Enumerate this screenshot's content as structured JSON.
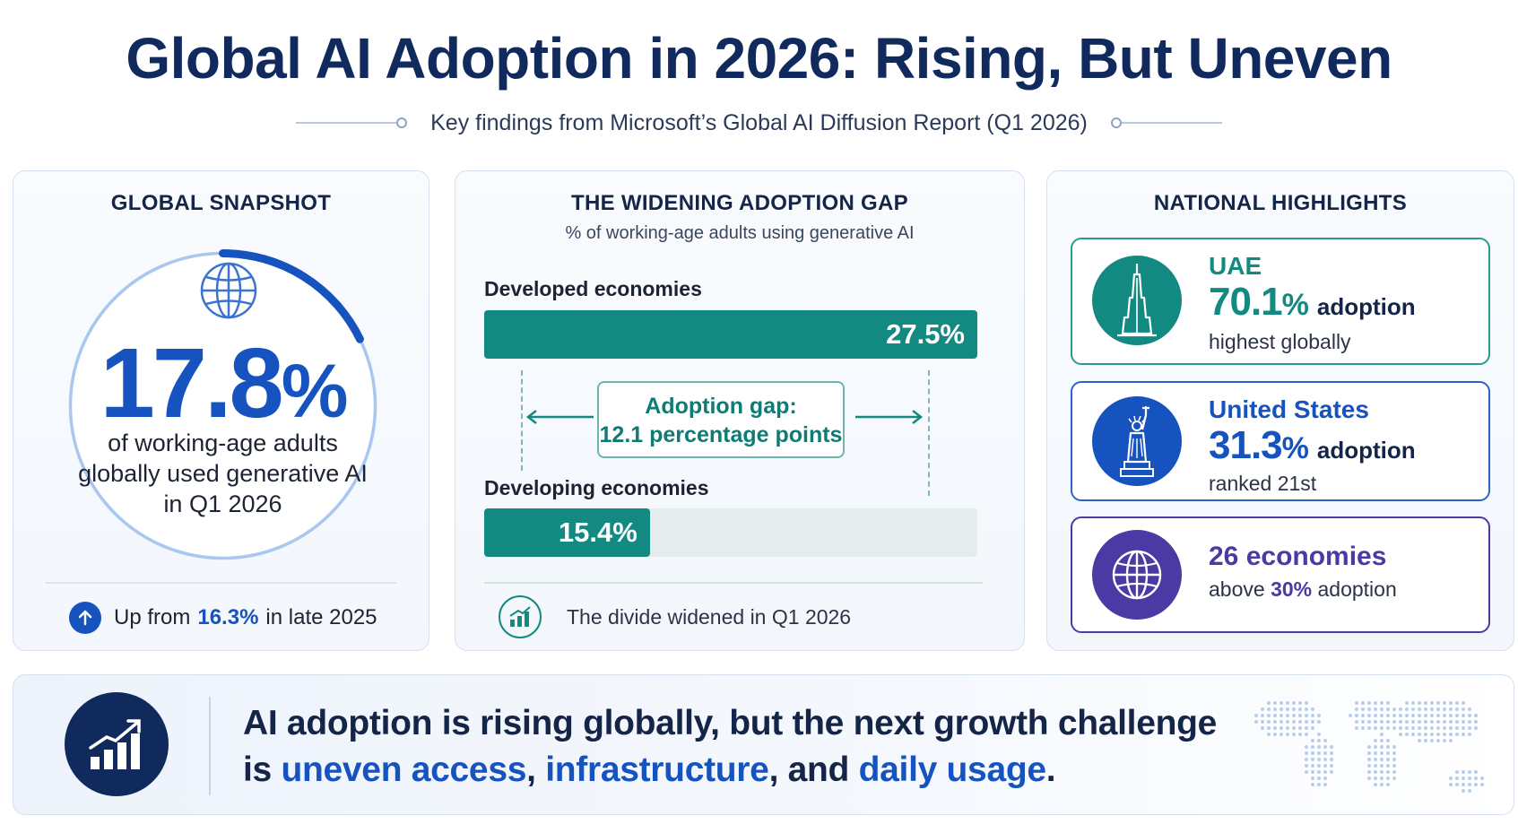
{
  "header": {
    "title": "Global AI Adoption in 2026: Rising, But Uneven",
    "subtitle": "Key findings from Microsoft’s Global AI Diffusion Report (Q1 2026)"
  },
  "snapshot": {
    "title": "GLOBAL SNAPSHOT",
    "value": "17.8",
    "unit": "%",
    "ring_fraction": 0.178,
    "description": "of working-age adults globally used generative AI in Q1 2026",
    "up_prefix": "Up from",
    "up_value": "16.3%",
    "up_suffix": "in late 2025",
    "icon": "globe-icon"
  },
  "gap": {
    "title": "THE WIDENING ADOPTION GAP",
    "subtitle": "% of working-age adults using generative AI",
    "developed": {
      "label": "Developed economies",
      "value_text": "27.5%",
      "value": 27.5
    },
    "developing": {
      "label": "Developing economies",
      "value_text": "15.4%",
      "value": 15.4
    },
    "gap_line1": "Adoption gap:",
    "gap_line2": "12.1 percentage points",
    "footer": "The divide widened in Q1 2026"
  },
  "national": {
    "title": "NATIONAL HIGHLIGHTS",
    "uae": {
      "name": "UAE",
      "value": "70.1",
      "unit": "%",
      "adoption": "adoption",
      "note": "highest globally",
      "icon": "burj-khalifa-icon"
    },
    "us": {
      "name": "United States",
      "value": "31.3",
      "unit": "%",
      "adoption": "adoption",
      "note": "ranked 21st",
      "icon": "statue-of-liberty-icon"
    },
    "economies": {
      "count": "26 economies",
      "note_prefix": "above",
      "note_value": "30%",
      "note_suffix": "adoption",
      "icon": "globe-icon"
    }
  },
  "banner": {
    "line1": "AI adoption is rising globally, but the next growth challenge",
    "line2_prefix": "is",
    "h1": "uneven access",
    "sep1": ",",
    "h2": "infrastructure",
    "sep2": ", and",
    "h3": "daily usage",
    "end": ".",
    "icon": "growth-chart-icon"
  },
  "colors": {
    "navy": "#102a5e",
    "blue": "#1653bf",
    "teal": "#128a82",
    "purple": "#4b3aa3"
  }
}
